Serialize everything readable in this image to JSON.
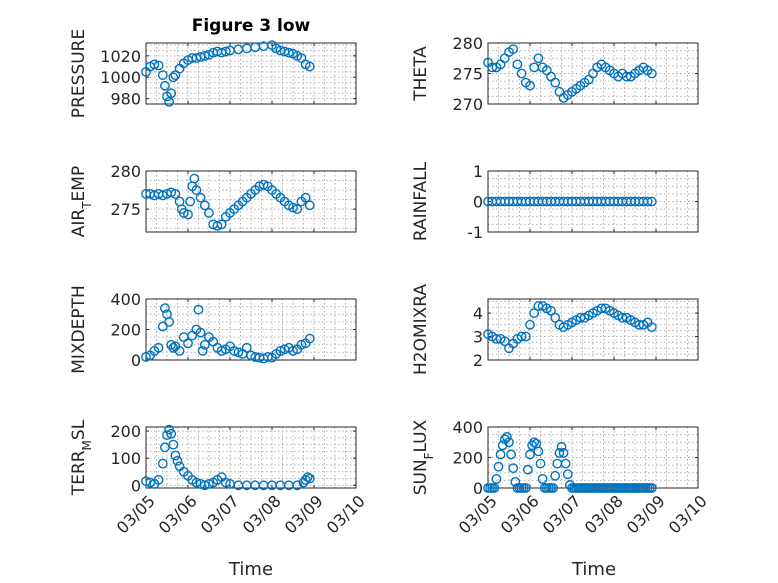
{
  "figure": {
    "title": "Figure 3 low",
    "xlabel": "Time"
  },
  "chart_data": [
    {
      "type": "scatter",
      "title": "Figure 3 low",
      "ylabel": "PRESSURE",
      "ylim": [
        975,
        1032
      ],
      "yticks": [
        980,
        1000,
        1020
      ],
      "xlim": [
        0,
        5
      ],
      "xticks": [
        0,
        1,
        2,
        3,
        4,
        5
      ],
      "xtick_labels": [
        "03/05",
        "03/06",
        "03/07",
        "03/08",
        "03/09",
        "03/10"
      ],
      "show_xtick_labels": false,
      "grid": true,
      "marker_color": "#0072bd",
      "x": [
        0.0,
        0.1,
        0.2,
        0.3,
        0.4,
        0.45,
        0.5,
        0.55,
        0.6,
        0.65,
        0.7,
        0.8,
        0.9,
        1.0,
        1.1,
        1.2,
        1.3,
        1.4,
        1.5,
        1.6,
        1.7,
        1.8,
        1.9,
        2.0,
        2.2,
        2.4,
        2.6,
        2.8,
        3.0,
        3.1,
        3.2,
        3.3,
        3.4,
        3.5,
        3.6,
        3.7,
        3.8,
        3.9
      ],
      "y": [
        1005,
        1010,
        1012,
        1011,
        1002,
        992,
        982,
        977,
        985,
        1000,
        1002,
        1008,
        1013,
        1016,
        1018,
        1018,
        1019,
        1020,
        1021,
        1023,
        1024,
        1023,
        1024,
        1025,
        1026,
        1027,
        1028,
        1029,
        1030,
        1027,
        1025,
        1024,
        1023,
        1022,
        1020,
        1018,
        1012,
        1010
      ]
    },
    {
      "type": "scatter",
      "ylabel": "THETA",
      "ylim": [
        270,
        280
      ],
      "yticks": [
        270,
        275,
        280
      ],
      "xlim": [
        0,
        5
      ],
      "xticks": [
        0,
        1,
        2,
        3,
        4,
        5
      ],
      "xtick_labels": [
        "03/05",
        "03/06",
        "03/07",
        "03/08",
        "03/09",
        "03/10"
      ],
      "show_xtick_labels": false,
      "grid": true,
      "marker_color": "#0072bd",
      "x": [
        0.0,
        0.1,
        0.2,
        0.3,
        0.4,
        0.5,
        0.6,
        0.7,
        0.8,
        0.9,
        1.0,
        1.1,
        1.2,
        1.3,
        1.4,
        1.5,
        1.6,
        1.7,
        1.8,
        1.9,
        2.0,
        2.1,
        2.2,
        2.3,
        2.4,
        2.5,
        2.6,
        2.7,
        2.8,
        2.9,
        3.0,
        3.1,
        3.2,
        3.3,
        3.4,
        3.5,
        3.6,
        3.7,
        3.8,
        3.9
      ],
      "y": [
        276.8,
        276.0,
        276.0,
        276.5,
        277.5,
        278.5,
        279.0,
        276.5,
        275.0,
        273.5,
        273.0,
        276.0,
        277.5,
        276.0,
        275.5,
        274.5,
        273.5,
        272.0,
        271.0,
        271.5,
        272.0,
        272.5,
        273.0,
        273.5,
        274.0,
        275.0,
        276.0,
        276.5,
        276.0,
        275.5,
        275.0,
        274.5,
        275.0,
        274.5,
        274.5,
        275.0,
        275.5,
        276.0,
        275.5,
        275.0
      ]
    },
    {
      "type": "scatter",
      "ylabel": "AIR_TEMP",
      "ylabel_main": "AIR",
      "ylabel_sub": "T",
      "ylabel_rest": "EMP",
      "ylim": [
        272,
        280
      ],
      "yticks": [
        275,
        280
      ],
      "xlim": [
        0,
        5
      ],
      "xticks": [
        0,
        1,
        2,
        3,
        4,
        5
      ],
      "xtick_labels": [
        "03/05",
        "03/06",
        "03/07",
        "03/08",
        "03/09",
        "03/10"
      ],
      "show_xtick_labels": false,
      "grid": true,
      "marker_color": "#0072bd",
      "x": [
        0.0,
        0.1,
        0.2,
        0.3,
        0.4,
        0.5,
        0.6,
        0.7,
        0.8,
        0.85,
        0.9,
        1.0,
        1.05,
        1.1,
        1.15,
        1.2,
        1.3,
        1.4,
        1.5,
        1.6,
        1.7,
        1.8,
        1.9,
        2.0,
        2.1,
        2.2,
        2.3,
        2.4,
        2.5,
        2.6,
        2.7,
        2.8,
        2.9,
        3.0,
        3.1,
        3.2,
        3.3,
        3.4,
        3.5,
        3.6,
        3.7,
        3.8,
        3.9
      ],
      "y": [
        277.0,
        277.0,
        276.8,
        277.0,
        276.8,
        277.0,
        277.2,
        277.0,
        276.0,
        275.0,
        274.5,
        274.3,
        276.0,
        278.0,
        279.0,
        277.5,
        276.5,
        275.5,
        274.5,
        273.0,
        272.8,
        273.0,
        274.0,
        274.5,
        275.0,
        275.5,
        276.0,
        276.5,
        277.0,
        277.5,
        278.0,
        278.2,
        278.0,
        277.5,
        277.0,
        276.5,
        276.0,
        275.5,
        275.2,
        275.0,
        276.0,
        276.5,
        275.5
      ]
    },
    {
      "type": "scatter",
      "ylabel": "RAINFALL",
      "ylim": [
        -1,
        1
      ],
      "yticks": [
        -1,
        0,
        1
      ],
      "xlim": [
        0,
        5
      ],
      "xticks": [
        0,
        1,
        2,
        3,
        4,
        5
      ],
      "xtick_labels": [
        "03/05",
        "03/06",
        "03/07",
        "03/08",
        "03/09",
        "03/10"
      ],
      "show_xtick_labels": false,
      "grid": true,
      "marker_color": "#0072bd",
      "x": [
        0.0,
        0.1,
        0.2,
        0.3,
        0.4,
        0.5,
        0.6,
        0.7,
        0.8,
        0.9,
        1.0,
        1.1,
        1.2,
        1.3,
        1.4,
        1.5,
        1.6,
        1.7,
        1.8,
        1.9,
        2.0,
        2.1,
        2.2,
        2.3,
        2.4,
        2.5,
        2.6,
        2.7,
        2.8,
        2.9,
        3.0,
        3.1,
        3.2,
        3.3,
        3.4,
        3.5,
        3.6,
        3.7,
        3.8,
        3.9
      ],
      "y": [
        0,
        0,
        0,
        0,
        0,
        0,
        0,
        0,
        0,
        0,
        0,
        0,
        0,
        0,
        0,
        0,
        0,
        0,
        0,
        0,
        0,
        0,
        0,
        0,
        0,
        0,
        0,
        0,
        0,
        0,
        0,
        0,
        0,
        0,
        0,
        0,
        0,
        0,
        0,
        0
      ]
    },
    {
      "type": "scatter",
      "ylabel": "MIXDEPTH",
      "ylim": [
        0,
        400
      ],
      "yticks": [
        0,
        200,
        400
      ],
      "xlim": [
        0,
        5
      ],
      "xticks": [
        0,
        1,
        2,
        3,
        4,
        5
      ],
      "xtick_labels": [
        "03/05",
        "03/06",
        "03/07",
        "03/08",
        "03/09",
        "03/10"
      ],
      "show_xtick_labels": false,
      "grid": true,
      "marker_color": "#0072bd",
      "x": [
        0.0,
        0.1,
        0.2,
        0.3,
        0.4,
        0.45,
        0.5,
        0.55,
        0.6,
        0.65,
        0.7,
        0.8,
        0.9,
        1.0,
        1.1,
        1.2,
        1.25,
        1.3,
        1.35,
        1.4,
        1.5,
        1.6,
        1.7,
        1.8,
        1.9,
        2.0,
        2.1,
        2.2,
        2.3,
        2.4,
        2.5,
        2.6,
        2.7,
        2.8,
        2.9,
        3.0,
        3.1,
        3.2,
        3.3,
        3.4,
        3.5,
        3.6,
        3.7,
        3.8,
        3.9
      ],
      "y": [
        20,
        30,
        60,
        80,
        220,
        340,
        300,
        250,
        100,
        80,
        90,
        60,
        150,
        110,
        160,
        200,
        330,
        180,
        60,
        100,
        150,
        120,
        80,
        60,
        70,
        90,
        60,
        50,
        40,
        80,
        30,
        20,
        15,
        10,
        20,
        15,
        40,
        60,
        70,
        80,
        60,
        70,
        100,
        110,
        140
      ]
    },
    {
      "type": "scatter",
      "ylabel": "H2OMIXRA",
      "ylim": [
        2,
        4.6
      ],
      "yticks": [
        2,
        3,
        4
      ],
      "xlim": [
        0,
        5
      ],
      "xticks": [
        0,
        1,
        2,
        3,
        4,
        5
      ],
      "xtick_labels": [
        "03/05",
        "03/06",
        "03/07",
        "03/08",
        "03/09",
        "03/10"
      ],
      "show_xtick_labels": false,
      "grid": true,
      "marker_color": "#0072bd",
      "x": [
        0.0,
        0.1,
        0.2,
        0.3,
        0.4,
        0.5,
        0.6,
        0.7,
        0.8,
        0.9,
        1.0,
        1.1,
        1.2,
        1.3,
        1.4,
        1.5,
        1.6,
        1.7,
        1.8,
        1.9,
        2.0,
        2.1,
        2.2,
        2.3,
        2.4,
        2.5,
        2.6,
        2.7,
        2.8,
        2.9,
        3.0,
        3.1,
        3.2,
        3.3,
        3.4,
        3.5,
        3.6,
        3.7,
        3.8,
        3.9
      ],
      "y": [
        3.1,
        3.0,
        2.9,
        2.9,
        2.8,
        2.5,
        2.7,
        2.9,
        3.0,
        3.0,
        3.5,
        4.0,
        4.3,
        4.3,
        4.2,
        4.1,
        3.8,
        3.5,
        3.4,
        3.5,
        3.6,
        3.7,
        3.8,
        3.8,
        3.9,
        4.0,
        4.1,
        4.2,
        4.2,
        4.1,
        4.0,
        3.9,
        3.8,
        3.8,
        3.7,
        3.6,
        3.5,
        3.5,
        3.6,
        3.4
      ]
    },
    {
      "type": "scatter",
      "ylabel": "TERR_MSL",
      "ylabel_main": "TERR",
      "ylabel_sub": "M",
      "ylabel_rest": "SL",
      "ylim": [
        -10,
        215
      ],
      "yticks": [
        0,
        100,
        200
      ],
      "xlim": [
        0,
        5
      ],
      "xticks": [
        0,
        1,
        2,
        3,
        4,
        5
      ],
      "xtick_labels": [
        "03/05",
        "03/06",
        "03/07",
        "03/08",
        "03/09",
        "03/10"
      ],
      "show_xtick_labels": true,
      "grid": true,
      "marker_color": "#0072bd",
      "x": [
        0.0,
        0.1,
        0.2,
        0.3,
        0.4,
        0.45,
        0.5,
        0.55,
        0.6,
        0.65,
        0.7,
        0.75,
        0.8,
        0.9,
        1.0,
        1.1,
        1.2,
        1.3,
        1.4,
        1.5,
        1.6,
        1.7,
        1.8,
        1.9,
        2.0,
        2.2,
        2.4,
        2.6,
        2.8,
        3.0,
        3.2,
        3.4,
        3.6,
        3.75,
        3.8,
        3.85,
        3.9
      ],
      "y": [
        15,
        10,
        5,
        20,
        80,
        140,
        185,
        205,
        190,
        150,
        110,
        90,
        70,
        50,
        35,
        20,
        10,
        5,
        0,
        5,
        10,
        20,
        30,
        10,
        5,
        0,
        0,
        0,
        0,
        0,
        0,
        0,
        0,
        10,
        20,
        30,
        25
      ]
    },
    {
      "type": "scatter",
      "ylabel": "SUN_FLUX",
      "ylabel_main": "SUN",
      "ylabel_sub": "F",
      "ylabel_rest": "LUX",
      "ylim": [
        0,
        400
      ],
      "yticks": [
        0,
        200,
        400
      ],
      "xlim": [
        0,
        5
      ],
      "xticks": [
        0,
        1,
        2,
        3,
        4,
        5
      ],
      "xtick_labels": [
        "03/05",
        "03/06",
        "03/07",
        "03/08",
        "03/09",
        "03/10"
      ],
      "show_xtick_labels": true,
      "grid": true,
      "marker_color": "#0072bd",
      "x": [
        0.0,
        0.05,
        0.1,
        0.15,
        0.2,
        0.25,
        0.3,
        0.35,
        0.4,
        0.45,
        0.5,
        0.55,
        0.6,
        0.65,
        0.7,
        0.75,
        0.8,
        0.85,
        0.9,
        0.95,
        1.0,
        1.05,
        1.1,
        1.15,
        1.2,
        1.25,
        1.3,
        1.35,
        1.4,
        1.45,
        1.5,
        1.55,
        1.6,
        1.65,
        1.7,
        1.75,
        1.8,
        1.85,
        1.9,
        1.95,
        2.0,
        2.05,
        2.1,
        2.15,
        2.2,
        2.25,
        2.3,
        2.35,
        2.4,
        2.45,
        2.5,
        2.55,
        2.6,
        2.65,
        2.7,
        2.75,
        2.8,
        2.85,
        2.9,
        2.95,
        3.0,
        3.05,
        3.1,
        3.15,
        3.2,
        3.25,
        3.3,
        3.35,
        3.4,
        3.45,
        3.5,
        3.55,
        3.6,
        3.65,
        3.7,
        3.75,
        3.8,
        3.85,
        3.9
      ],
      "y": [
        0,
        0,
        0,
        0,
        60,
        140,
        220,
        280,
        320,
        335,
        300,
        220,
        130,
        40,
        0,
        0,
        0,
        0,
        0,
        120,
        220,
        280,
        300,
        290,
        240,
        160,
        60,
        0,
        0,
        0,
        0,
        0,
        80,
        160,
        230,
        270,
        230,
        160,
        90,
        20,
        0,
        0,
        0,
        0,
        0,
        0,
        0,
        0,
        0,
        0,
        0,
        0,
        0,
        0,
        0,
        0,
        0,
        0,
        0,
        0,
        0,
        0,
        0,
        0,
        0,
        0,
        0,
        0,
        0,
        0,
        0,
        0,
        0,
        0,
        0,
        0,
        0,
        0,
        0
      ]
    }
  ]
}
